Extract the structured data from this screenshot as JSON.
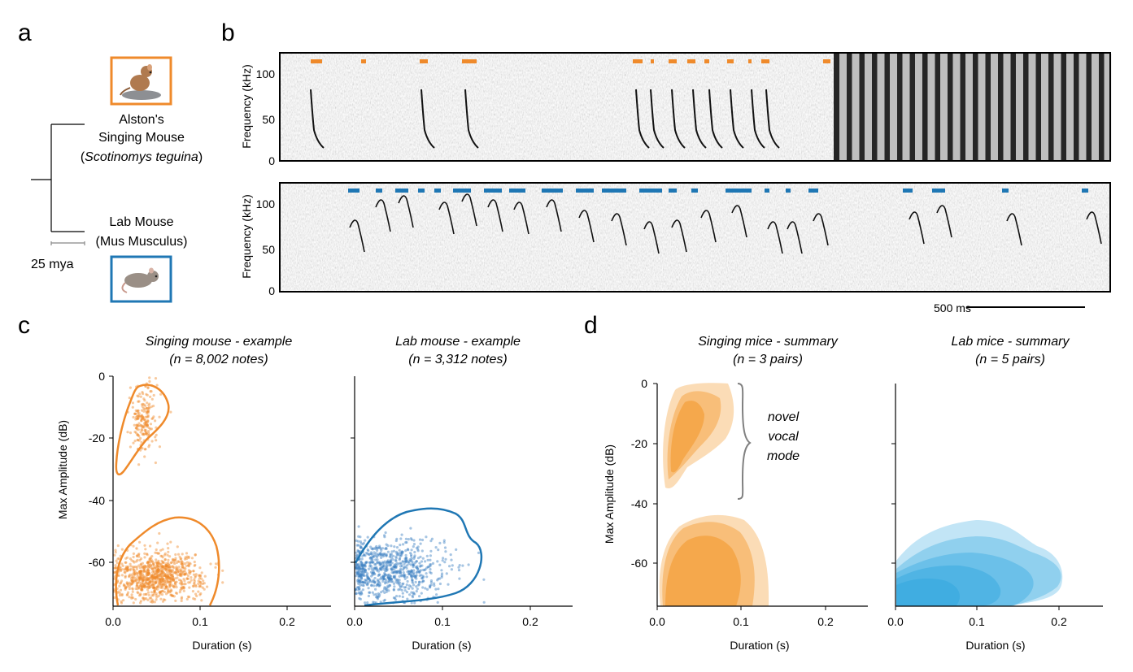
{
  "panel_labels": {
    "a": "a",
    "b": "b",
    "c": "c",
    "d": "d"
  },
  "panel_a": {
    "species_top_line1": "Alston's",
    "species_top_line2": "Singing Mouse",
    "species_top_latin_open": "(",
    "species_top_latin": "Scotinomys teguina",
    "species_top_latin_close": ")",
    "species_bottom_line1": "Lab Mouse",
    "species_bottom_latin": "(Mus Musculus)",
    "scale_label": "25 mya",
    "colors": {
      "singing": "#ef8a2b",
      "lab": "#1f77b4"
    }
  },
  "panel_b": {
    "ylabel": "Frequency (kHz)",
    "yticks": [
      "100",
      "50",
      "0"
    ],
    "scalebar_label": "500 ms"
  },
  "chart_data": [
    {
      "type": "scatter",
      "panel": "c",
      "title_line1": "Singing mouse - example",
      "title_line2": "(n = 8,002 notes)",
      "xlabel": "Duration (s)",
      "ylabel": "Max Amplitude (dB)",
      "xlim": [
        0,
        0.25
      ],
      "ylim": [
        -75,
        0
      ],
      "xticks": [
        "0.0",
        "0.1",
        "0.2"
      ],
      "yticks": [
        "0",
        "-20",
        "-40",
        "-60"
      ],
      "color": "#ef8a2b",
      "clusters": [
        {
          "x_center": 0.035,
          "x_spread": 0.008,
          "y_center": -14,
          "y_spread": 6,
          "n": 200
        },
        {
          "x_center": 0.05,
          "x_spread": 0.025,
          "y_center": -65,
          "y_spread": 4,
          "n": 900
        }
      ]
    },
    {
      "type": "scatter",
      "panel": "c",
      "title_line1": "Lab mouse - example",
      "title_line2": "(n = 3,312 notes)",
      "xlabel": "Duration (s)",
      "xlim": [
        0,
        0.25
      ],
      "ylim": [
        -75,
        0
      ],
      "xticks": [
        "0.0",
        "0.1",
        "0.2"
      ],
      "color": "#3a7fc1",
      "clusters": [
        {
          "x_center": 0.04,
          "x_spread": 0.03,
          "y_center": -63,
          "y_spread": 5,
          "n": 800
        }
      ]
    },
    {
      "type": "area",
      "panel": "d",
      "title_line1": "Singing mice - summary",
      "title_line2": "(n = 3 pairs)",
      "xlabel": "Duration (s)",
      "ylabel": "Max Amplitude (dB)",
      "xlim": [
        0,
        0.25
      ],
      "ylim": [
        -75,
        0
      ],
      "xticks": [
        "0.0",
        "0.1",
        "0.2"
      ],
      "yticks": [
        "0",
        "-20",
        "-40",
        "-60"
      ],
      "color": "#f39a2e",
      "annotation": [
        "novel",
        "vocal",
        "mode"
      ]
    },
    {
      "type": "area",
      "panel": "d",
      "title_line1": "Lab mice - summary",
      "title_line2": "(n = 5 pairs)",
      "xlabel": "Duration (s)",
      "xlim": [
        0,
        0.25
      ],
      "ylim": [
        -75,
        0
      ],
      "xticks": [
        "0.0",
        "0.1",
        "0.2"
      ],
      "color": "#35a8e0"
    }
  ]
}
